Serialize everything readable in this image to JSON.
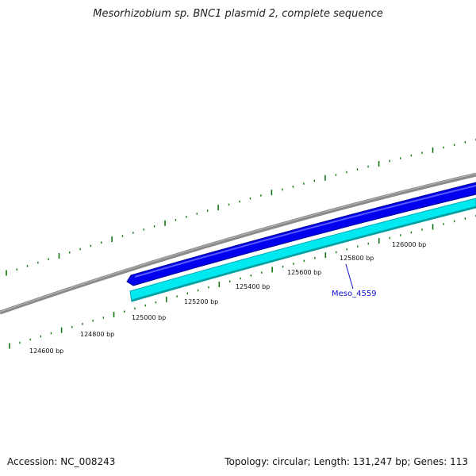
{
  "title": "Mesorhizobium sp. BNC1 plasmid 2, complete sequence",
  "footer": {
    "accession": "Accession: NC_008243",
    "summary": "Topology: circular; Length: 131,247 bp; Genes: 113"
  },
  "ticks": [
    {
      "label": "124600 bp"
    },
    {
      "label": "124800 bp"
    },
    {
      "label": "125000 bp"
    },
    {
      "label": "125200 bp"
    },
    {
      "label": "125400 bp"
    },
    {
      "label": "125600 bp"
    },
    {
      "label": "125800 bp"
    },
    {
      "label": "126000 bp"
    }
  ],
  "genes": [
    {
      "name": "Meso_4559",
      "strand": "forward",
      "color": "#0000ee"
    }
  ],
  "colors": {
    "backbone": "#808080",
    "forward_gene": "#0000ee",
    "reverse_gene": "#00e8f0",
    "reverse_gene_edge": "#00a0a0",
    "tick": "#117711",
    "gene_label": "#1010d0"
  }
}
